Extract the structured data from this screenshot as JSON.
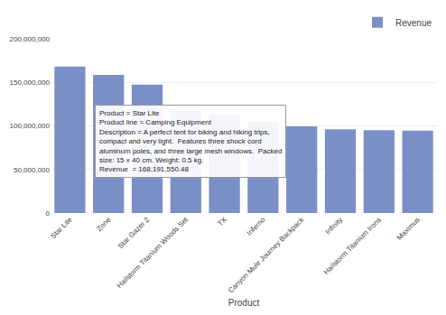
{
  "chart_data": {
    "type": "bar",
    "categories": [
      "Star Lite",
      "Zone",
      "Star Gazer 2",
      "Hailstorm Titanium Woods Set",
      "TX",
      "Inferno",
      "Canyon Mule Journey Backpack",
      "Infinity",
      "Hailstorm Titanium Irons",
      "Maximus"
    ],
    "series": [
      {
        "name": "Revenue",
        "color": "#7b8fc7",
        "values": [
          168191550,
          158500000,
          147500000,
          117000000,
          113000000,
          105000000,
          99500000,
          96000000,
          95000000,
          94500000
        ]
      }
    ],
    "xlabel": "Product",
    "ylim": [
      0,
      200000000
    ],
    "yticks": [
      0,
      {
        "value": 50000000,
        "label": "50,000,000"
      },
      {
        "value": 100000000,
        "label": "100,000,000"
      },
      {
        "value": 150000000,
        "label": "150,000,000"
      },
      {
        "value": 200000000,
        "label": "200,000,000"
      }
    ],
    "grid": true,
    "legend": "upper right",
    "annotations": [
      "Product = Star Lite\nProduct line = Camping Equipment\nDescription = A perfect tent for biking and hiking trips,\ncompact and very light.  Features three shock cord\naluminum poles, and three large mesh windows.  Packed\nsize: 15 x 40 cm. Weight: 0.5 kg.\nRevenue  = 168,191,550.48"
    ]
  }
}
